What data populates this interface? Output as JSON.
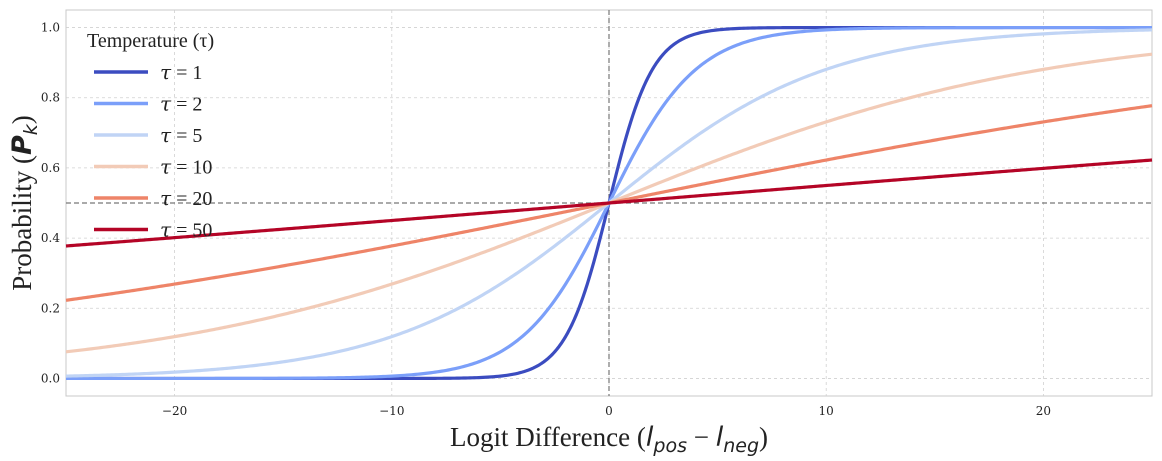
{
  "chart_data": {
    "type": "line",
    "title": "",
    "xlim": [
      -25,
      25
    ],
    "ylim": [
      -0.05,
      1.05
    ],
    "x_ticks": [
      -20,
      -10,
      0,
      10,
      20
    ],
    "x_tick_labels": [
      "−20",
      "−10",
      "0",
      "10",
      "20"
    ],
    "y_ticks": [
      0.0,
      0.2,
      0.4,
      0.6,
      0.8,
      1.0
    ],
    "y_tick_labels": [
      "0.0",
      "0.2",
      "0.4",
      "0.6",
      "0.8",
      "1.0"
    ],
    "xlabel": {
      "prefix": "Logit Difference (",
      "var1": "l",
      "sub1": "pos",
      "op": " − ",
      "var2": "l",
      "sub2": "neg",
      "suffix": ")"
    },
    "ylabel": {
      "prefix": "Probability (",
      "var": "P",
      "sub": "k",
      "suffix": ")"
    },
    "grid": true,
    "reference_lines": {
      "x": 0,
      "y": 0.5,
      "style": "dashed"
    },
    "function": "sigmoid(x / tau)",
    "legend": {
      "title": "Temperature (τ)",
      "position": "top-left"
    },
    "series": [
      {
        "name": "τ = 1",
        "symbol": "τ",
        "eq": " = 1",
        "tau": 1,
        "color": "#3b4cc0"
      },
      {
        "name": "τ = 2",
        "symbol": "τ",
        "eq": " = 2",
        "tau": 2,
        "color": "#7b9ff9"
      },
      {
        "name": "τ = 5",
        "symbol": "τ",
        "eq": " = 5",
        "tau": 5,
        "color": "#c0d4f5"
      },
      {
        "name": "τ = 10",
        "symbol": "τ",
        "eq": " = 10",
        "tau": 10,
        "color": "#f2cbb7"
      },
      {
        "name": "τ = 20",
        "symbol": "τ",
        "eq": " = 20",
        "tau": 20,
        "color": "#ee8468"
      },
      {
        "name": "τ = 50",
        "symbol": "τ",
        "eq": " = 50",
        "tau": 50,
        "color": "#b40426"
      }
    ]
  }
}
